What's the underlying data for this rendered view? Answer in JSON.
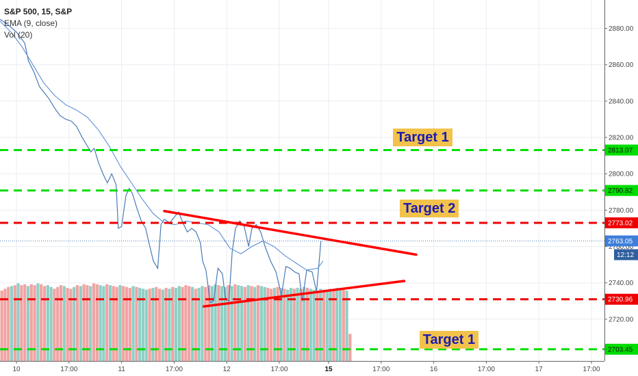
{
  "legend": {
    "title": "S&P 500, 15, S&P",
    "ema": "EMA (9, close)",
    "vol": "Vol (20)"
  },
  "targets": [
    {
      "label": "Target 1"
    },
    {
      "label": "Target 2"
    },
    {
      "label": "Target 1"
    }
  ],
  "colors": {
    "grid": "#e9edf2",
    "price_line": "#4a78b5",
    "ema_line": "#5b8fd6",
    "green_level": "#00dd00",
    "red_level": "#ee0000",
    "trendline": "#ff0000",
    "vol_up": "#8fd0c6",
    "vol_down": "#f2a3a3",
    "current_price_bg": "#3d7edb",
    "countdown_bg": "#2f5f9e",
    "target_bg": "#f2c24a",
    "target_text": "#1a1ab4"
  },
  "chart_data": {
    "type": "line",
    "title": "S&P 500, 15, S&P",
    "ylim": [
      2697,
      2897
    ],
    "y_ticks": [
      2720,
      2740,
      2760,
      2780,
      2800,
      2820,
      2840,
      2860,
      2880
    ],
    "y_tick_labels": [
      "2720.00",
      "2740.00",
      "2760.00",
      "2780.00",
      "2800.00",
      "2820.00",
      "2840.00",
      "2860.00",
      "2880.00"
    ],
    "x_range": [
      0,
      1158
    ],
    "x_ticks": [
      {
        "t": 30,
        "label": "10"
      },
      {
        "t": 126,
        "label": "17:00"
      },
      {
        "t": 222,
        "label": "11"
      },
      {
        "t": 318,
        "label": "17:00"
      },
      {
        "t": 414,
        "label": "12"
      },
      {
        "t": 510,
        "label": "17:00"
      },
      {
        "t": 600,
        "label": "15"
      },
      {
        "t": 696,
        "label": "17:00"
      },
      {
        "t": 792,
        "label": "16"
      },
      {
        "t": 888,
        "label": "17:00"
      },
      {
        "t": 984,
        "label": "17"
      },
      {
        "t": 1080,
        "label": "17:00"
      }
    ],
    "x_gridlines": [
      30,
      126,
      222,
      318,
      414,
      510,
      600,
      696,
      792,
      888,
      984,
      1080,
      1104
    ],
    "series": [
      {
        "key": "price",
        "x": [
          0,
          15,
          30,
          45,
          52,
          62,
          72,
          80,
          90,
          100,
          110,
          120,
          130,
          140,
          150,
          160,
          166,
          172,
          180,
          188,
          196,
          204,
          212,
          216,
          222,
          230,
          236,
          242,
          250,
          258,
          266,
          272,
          280,
          288,
          294,
          300,
          310,
          318,
          326,
          334,
          342,
          350,
          358,
          366,
          370,
          376,
          384,
          390,
          398,
          406,
          412,
          418,
          424,
          430,
          438,
          446,
          454,
          460,
          468,
          476,
          484,
          494,
          504,
          514,
          522,
          530,
          538,
          546,
          552,
          560,
          570,
          578,
          586
        ],
        "values": [
          2885,
          2882,
          2878,
          2872,
          2862,
          2856,
          2848,
          2845,
          2841,
          2836,
          2832,
          2830,
          2829,
          2826,
          2820,
          2815,
          2812,
          2814,
          2806,
          2800,
          2795,
          2800,
          2794,
          2770,
          2771,
          2788,
          2792,
          2789,
          2781,
          2774,
          2770,
          2762,
          2752,
          2748,
          2772,
          2775,
          2773,
          2776,
          2779,
          2773,
          2768,
          2770,
          2768,
          2762,
          2752,
          2747,
          2729,
          2730,
          2748,
          2745,
          2731,
          2730,
          2757,
          2770,
          2774,
          2771,
          2760,
          2770,
          2772,
          2768,
          2760,
          2752,
          2746,
          2733,
          2749,
          2748,
          2746,
          2745,
          2730,
          2747,
          2746,
          2735,
          2763
        ]
      },
      {
        "key": "ema",
        "x": [
          0,
          20,
          40,
          60,
          80,
          100,
          120,
          140,
          160,
          180,
          200,
          220,
          240,
          260,
          280,
          300,
          320,
          340,
          360,
          380,
          400,
          420,
          440,
          460,
          480,
          500,
          520,
          540,
          560,
          580,
          590
        ],
        "values": [
          2884,
          2878,
          2870,
          2860,
          2850,
          2843,
          2838,
          2835,
          2831,
          2824,
          2815,
          2804,
          2795,
          2786,
          2778,
          2773,
          2772,
          2774,
          2773,
          2772,
          2768,
          2759,
          2756,
          2760,
          2763,
          2760,
          2755,
          2751,
          2747,
          2748,
          2752
        ]
      }
    ],
    "volume": {
      "x_start": 0,
      "x_step": 6,
      "heights": [
        0.78,
        0.8,
        0.82,
        0.83,
        0.84,
        0.86,
        0.84,
        0.85,
        0.83,
        0.85,
        0.84,
        0.86,
        0.85,
        0.83,
        0.84,
        0.82,
        0.8,
        0.82,
        0.84,
        0.83,
        0.81,
        0.8,
        0.82,
        0.84,
        0.83,
        0.85,
        0.84,
        0.83,
        0.86,
        0.85,
        0.84,
        0.83,
        0.85,
        0.84,
        0.83,
        0.82,
        0.84,
        0.83,
        0.82,
        0.81,
        0.83,
        0.82,
        0.81,
        0.8,
        0.79,
        0.8,
        0.81,
        0.82,
        0.8,
        0.79,
        0.81,
        0.8,
        0.82,
        0.81,
        0.83,
        0.82,
        0.84,
        0.83,
        0.82,
        0.8,
        0.81,
        0.83,
        0.82,
        0.84,
        0.83,
        0.85,
        0.84,
        0.83,
        0.82,
        0.84,
        0.83,
        0.85,
        0.84,
        0.83,
        0.82,
        0.84,
        0.83,
        0.82,
        0.84,
        0.83,
        0.82,
        0.81,
        0.8,
        0.81,
        0.82,
        0.81,
        0.8,
        0.79,
        0.81,
        0.8,
        0.81,
        0.8,
        0.82,
        0.81,
        0.8,
        0.79,
        0.78,
        0.8,
        0.79,
        0.78,
        0.8,
        0.79,
        0.81,
        0.8,
        0.79,
        0.78,
        0.3,
        0.0
      ],
      "up": [
        false,
        false,
        false,
        true,
        false,
        true,
        false,
        false,
        true,
        false,
        false,
        true,
        false,
        false,
        true,
        true,
        false,
        false,
        false,
        true,
        false,
        false,
        true,
        false,
        true,
        false,
        false,
        true,
        false,
        false,
        true,
        true,
        false,
        true,
        false,
        false,
        true,
        false,
        false,
        false,
        true,
        false,
        true,
        true,
        true,
        false,
        true,
        false,
        false,
        true,
        false,
        true,
        false,
        true,
        true,
        false,
        false,
        false,
        true,
        false,
        true,
        true,
        false,
        false,
        true,
        true,
        false,
        true,
        true,
        false,
        true,
        false,
        true,
        true,
        false,
        true,
        false,
        true,
        false,
        true,
        true,
        false,
        false,
        true,
        false,
        true,
        false,
        true,
        true,
        false,
        true,
        false,
        true,
        false,
        true,
        true,
        false,
        true,
        false,
        true,
        true,
        false,
        true,
        true,
        false,
        true,
        false,
        false
      ]
    },
    "levels": [
      {
        "value": 2813.07,
        "label": "2813.07",
        "color": "green"
      },
      {
        "value": 2790.82,
        "label": "2790.82",
        "color": "green"
      },
      {
        "value": 2773.02,
        "label": "2773.02",
        "color": "red"
      },
      {
        "value": 2730.96,
        "label": "2730.96",
        "color": "red"
      },
      {
        "value": 2703.45,
        "label": "2703.45",
        "color": "green"
      }
    ],
    "current_price": {
      "value": 2763.05,
      "label": "2763.05"
    },
    "countdown": {
      "value": 2755.5,
      "label": "12:12"
    },
    "trendlines": [
      {
        "name": "upper",
        "x1": 300,
        "y1": 2779.5,
        "x2": 760,
        "y2": 2755.5
      },
      {
        "name": "lower",
        "x1": 372,
        "y1": 2727,
        "x2": 738,
        "y2": 2741
      }
    ],
    "target_positions": [
      {
        "label": "Target 1",
        "value": 2820,
        "t": 778
      },
      {
        "label": "Target 2",
        "value": 2781,
        "t": 790
      },
      {
        "label": "Target 1",
        "value": 2708.5,
        "t": 826
      }
    ]
  }
}
